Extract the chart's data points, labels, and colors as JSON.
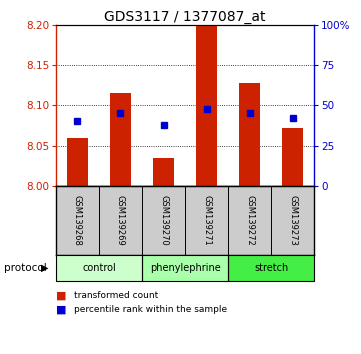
{
  "title": "GDS3117 / 1377087_at",
  "samples": [
    "GSM139268",
    "GSM139269",
    "GSM139270",
    "GSM139271",
    "GSM139272",
    "GSM139273"
  ],
  "bar_values": [
    8.06,
    8.115,
    8.035,
    8.2,
    8.128,
    8.072
  ],
  "percentile_values": [
    40,
    45,
    38,
    48,
    45,
    42
  ],
  "bar_bottom": 8.0,
  "ylim_left": [
    8.0,
    8.2
  ],
  "ylim_right": [
    0,
    100
  ],
  "yticks_left": [
    8.0,
    8.05,
    8.1,
    8.15,
    8.2
  ],
  "yticks_right": [
    0,
    25,
    50,
    75,
    100
  ],
  "ytick_labels_right": [
    "0",
    "25",
    "50",
    "75",
    "100%"
  ],
  "bar_color": "#cc2200",
  "marker_color": "#0000cc",
  "group_labels": [
    "control",
    "phenylephrine",
    "stretch"
  ],
  "group_colors": [
    "#ccffcc",
    "#aaffaa",
    "#44ee44"
  ],
  "group_ranges": [
    [
      0,
      1
    ],
    [
      2,
      3
    ],
    [
      4,
      5
    ]
  ],
  "protocol_label": "protocol",
  "legend_bar_label": "transformed count",
  "legend_marker_label": "percentile rank within the sample",
  "background_color": "#ffffff",
  "bar_width": 0.5,
  "sample_area_color": "#cccccc"
}
